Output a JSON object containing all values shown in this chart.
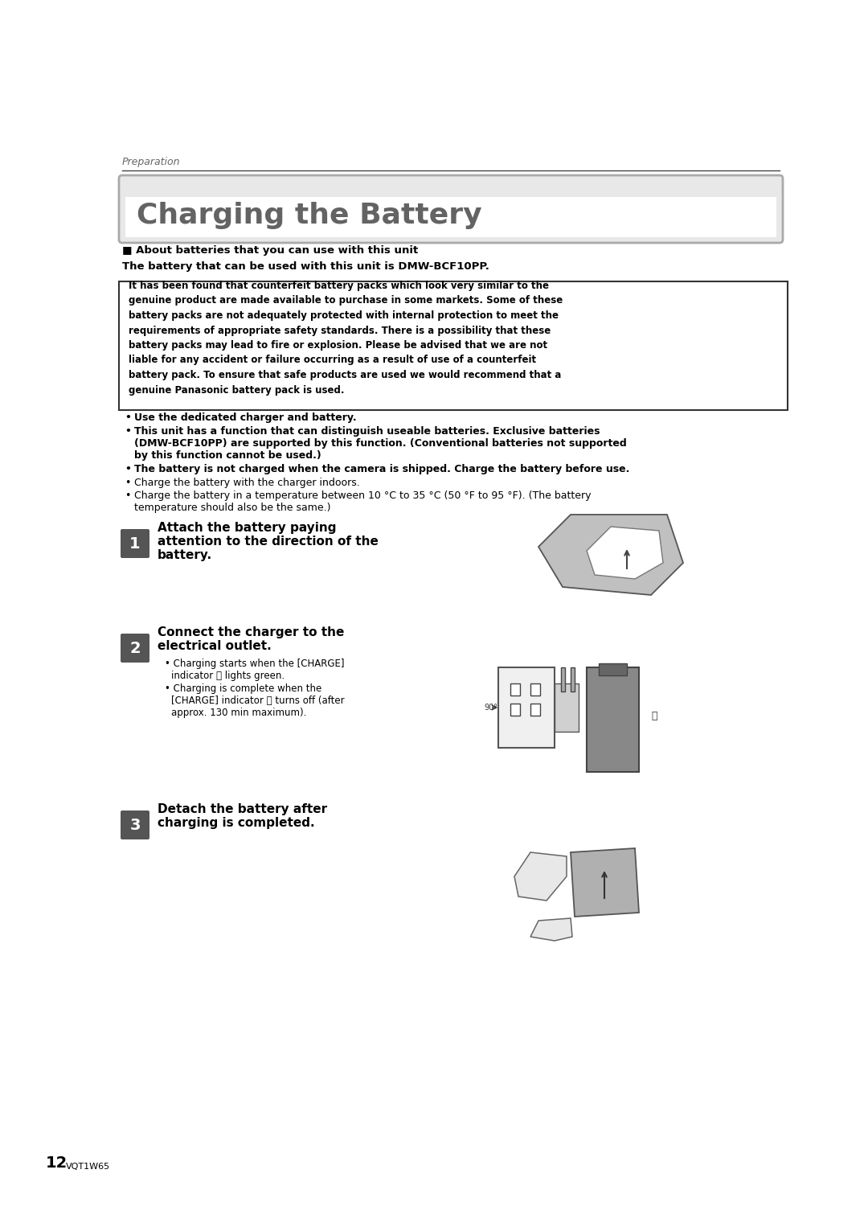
{
  "bg_color": "#ffffff",
  "preparation_label": "Preparation",
  "section_title": "Charging the Battery",
  "about_batteries_header": "■ About batteries that you can use with this unit",
  "about_batteries_sub": "The battery that can be used with this unit is DMW-BCF10PP.",
  "warning_line1": "It has been found that counterfeit battery packs which look very similar to the",
  "warning_line2": "genuine product are made available to purchase in some markets. Some of these",
  "warning_line3": "battery packs are not adequately protected with internal protection to meet the",
  "warning_line4": "requirements of appropriate safety standards. There is a possibility that these",
  "warning_line5": "battery packs may lead to fire or explosion. Please be advised that we are not",
  "warning_line6": "liable for any accident or failure occurring as a result of use of a counterfeit",
  "warning_line7": "battery pack. To ensure that safe products are used we would recommend that a",
  "warning_line8": "genuine Panasonic battery pack is used.",
  "bullet_bold_1": "Use the dedicated charger and battery.",
  "bullet_bold_2a": "This unit has a function that can distinguish useable batteries. Exclusive batteries",
  "bullet_bold_2b": "(DMW-BCF10PP) are supported by this function. (Conventional batteries not supported",
  "bullet_bold_2c": "by this function cannot be used.)",
  "bullet_bold_3": "The battery is not charged when the camera is shipped. Charge the battery before use.",
  "bullet_normal_1": "Charge the battery with the charger indoors.",
  "bullet_normal_2a": "Charge the battery in a temperature between 10 °C to 35 °C (50 °F to 95 °F). (The battery",
  "bullet_normal_2b": "temperature should also be the same.)",
  "step1_line1": "Attach the battery paying",
  "step1_line2": "attention to the direction of the",
  "step1_line3": "battery.",
  "step2_line1": "Connect the charger to the",
  "step2_line2": "electrical outlet.",
  "step2_b1a": "Charging starts when the [CHARGE]",
  "step2_b1b": "indicator Ⓐ lights green.",
  "step2_b2a": "Charging is complete when the",
  "step2_b2b": "[CHARGE] indicator Ⓐ turns off (after",
  "step2_b2c": "approx. 130 min maximum).",
  "step3_line1": "Detach the battery after",
  "step3_line2": "charging is completed.",
  "footer_num": "12",
  "footer_code": "VQT1W65",
  "title_color": "#636363",
  "text_color": "#000000",
  "prep_color": "#666666",
  "step_box_color": "#555555",
  "warn_border": "#333333",
  "line_color": "#333333"
}
